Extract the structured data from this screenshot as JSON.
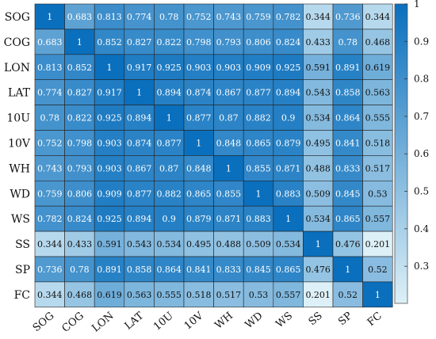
{
  "chart_data": {
    "type": "heatmap",
    "title": "",
    "xlabel": "",
    "ylabel": "",
    "labels": [
      "SOG",
      "COG",
      "LON",
      "LAT",
      "10U",
      "10V",
      "WH",
      "WD",
      "WS",
      "SS",
      "SP",
      "FC"
    ],
    "values": [
      [
        "1",
        "0.683",
        "0.813",
        "0.774",
        "0.78",
        "0.752",
        "0.743",
        "0.759",
        "0.782",
        "0.344",
        "0.736",
        "0.344"
      ],
      [
        "0.683",
        "1",
        "0.852",
        "0.827",
        "0.822",
        "0.798",
        "0.793",
        "0.806",
        "0.824",
        "0.433",
        "0.78",
        "0.468"
      ],
      [
        "0.813",
        "0.852",
        "1",
        "0.917",
        "0.925",
        "0.903",
        "0.903",
        "0.909",
        "0.925",
        "0.591",
        "0.891",
        "0.619"
      ],
      [
        "0.774",
        "0.827",
        "0.917",
        "1",
        "0.894",
        "0.874",
        "0.867",
        "0.877",
        "0.894",
        "0.543",
        "0.858",
        "0.563"
      ],
      [
        "0.78",
        "0.822",
        "0.925",
        "0.894",
        "1",
        "0.877",
        "0.87",
        "0.882",
        "0.9",
        "0.534",
        "0.864",
        "0.555"
      ],
      [
        "0.752",
        "0.798",
        "0.903",
        "0.874",
        "0.877",
        "1",
        "0.848",
        "0.865",
        "0.879",
        "0.495",
        "0.841",
        "0.518"
      ],
      [
        "0.743",
        "0.793",
        "0.903",
        "0.867",
        "0.87",
        "0.848",
        "1",
        "0.855",
        "0.871",
        "0.488",
        "0.833",
        "0.517"
      ],
      [
        "0.759",
        "0.806",
        "0.909",
        "0.877",
        "0.882",
        "0.865",
        "0.855",
        "1",
        "0.883",
        "0.509",
        "0.845",
        "0.53"
      ],
      [
        "0.782",
        "0.824",
        "0.925",
        "0.894",
        "0.9",
        "0.879",
        "0.871",
        "0.883",
        "1",
        "0.534",
        "0.865",
        "0.557"
      ],
      [
        "0.344",
        "0.433",
        "0.591",
        "0.543",
        "0.534",
        "0.495",
        "0.488",
        "0.509",
        "0.534",
        "1",
        "0.476",
        "0.201"
      ],
      [
        "0.736",
        "0.78",
        "0.891",
        "0.858",
        "0.864",
        "0.841",
        "0.833",
        "0.845",
        "0.865",
        "0.476",
        "1",
        "0.52"
      ],
      [
        "0.344",
        "0.468",
        "0.619",
        "0.563",
        "0.555",
        "0.518",
        "0.517",
        "0.53",
        "0.557",
        "0.201",
        "0.52",
        "1"
      ]
    ],
    "colorbar": {
      "range": [
        0.201,
        1
      ],
      "ticks": [
        "1",
        "0.9",
        "0.8",
        "0.7",
        "0.6",
        "0.5",
        "0.4",
        "0.3"
      ],
      "color_low": "#ddf0f7",
      "color_high": "#0a6fbd"
    },
    "legend_placement": "right"
  }
}
